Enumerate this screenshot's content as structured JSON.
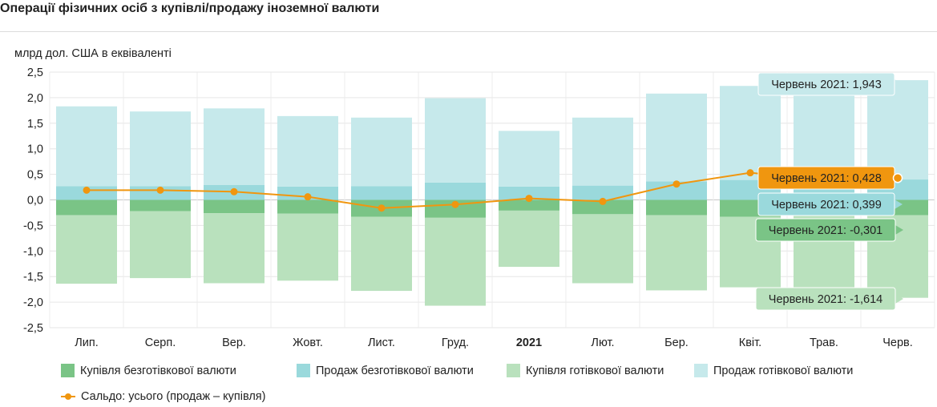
{
  "title": "Операції фізичних осіб з купівлі/продажу іноземної валюти",
  "chart_data": {
    "type": "bar",
    "unit_label": "млрд дол. США в еквіваленті",
    "categories": [
      "Лип.",
      "Серп.",
      "Вер.",
      "Жовт.",
      "Лист.",
      "Груд.",
      "2021",
      "Лют.",
      "Бер.",
      "Квіт.",
      "Трав.",
      "Черв."
    ],
    "ylim": [
      -2.5,
      2.5
    ],
    "yticks": [
      2.5,
      2.0,
      1.5,
      1.0,
      0.5,
      0.0,
      -0.5,
      -1.0,
      -1.5,
      -2.0,
      -2.5
    ],
    "ytick_labels": [
      "2,5",
      "2,0",
      "1,5",
      "1,0",
      "0,5",
      "0,0",
      "-0,5",
      "-1,0",
      "-1,5",
      "-2,0",
      "-2,5"
    ],
    "grid": true,
    "series": [
      {
        "name": "Купівля безготівкової валюти",
        "color": "#7ac486",
        "values": [
          -0.3,
          -0.22,
          -0.26,
          -0.27,
          -0.33,
          -0.35,
          -0.21,
          -0.28,
          -0.3,
          -0.33,
          -0.3,
          -0.301
        ]
      },
      {
        "name": "Продаж безготівкової валюти",
        "color": "#9ad9dc",
        "values": [
          0.27,
          0.27,
          0.29,
          0.26,
          0.27,
          0.34,
          0.26,
          0.28,
          0.36,
          0.39,
          0.38,
          0.399
        ]
      },
      {
        "name": "Купівля готівкової валюти",
        "color": "#b9e1bd",
        "values": [
          -1.34,
          -1.31,
          -1.37,
          -1.31,
          -1.45,
          -1.72,
          -1.1,
          -1.35,
          -1.47,
          -1.38,
          -1.55,
          -1.614
        ]
      },
      {
        "name": "Продаж готівкової валюти",
        "color": "#c6e9eb",
        "values": [
          1.56,
          1.46,
          1.5,
          1.38,
          1.34,
          1.65,
          1.09,
          1.33,
          1.72,
          1.84,
          1.82,
          1.943
        ]
      },
      {
        "name": "Сальдо: усього (продаж – купівля)",
        "type": "line",
        "color": "#f0960f",
        "values": [
          0.19,
          0.19,
          0.16,
          0.06,
          -0.16,
          -0.09,
          0.03,
          -0.03,
          0.31,
          0.53,
          0.39,
          0.428
        ]
      }
    ],
    "tooltips": [
      {
        "label": "Червень 2021: 1,943",
        "color": "#c6e9eb",
        "text_color": "#222222"
      },
      {
        "label": "Червень 2021: 0,428",
        "color": "#f0960f",
        "text_color": "#222222"
      },
      {
        "label": "Червень 2021: 0,399",
        "color": "#9ad9dc",
        "text_color": "#222222"
      },
      {
        "label": "Червень 2021: -0,301",
        "color": "#7ac486",
        "text_color": "#222222"
      },
      {
        "label": "Червень 2021: -1,614",
        "color": "#b9e1bd",
        "text_color": "#222222"
      }
    ]
  }
}
